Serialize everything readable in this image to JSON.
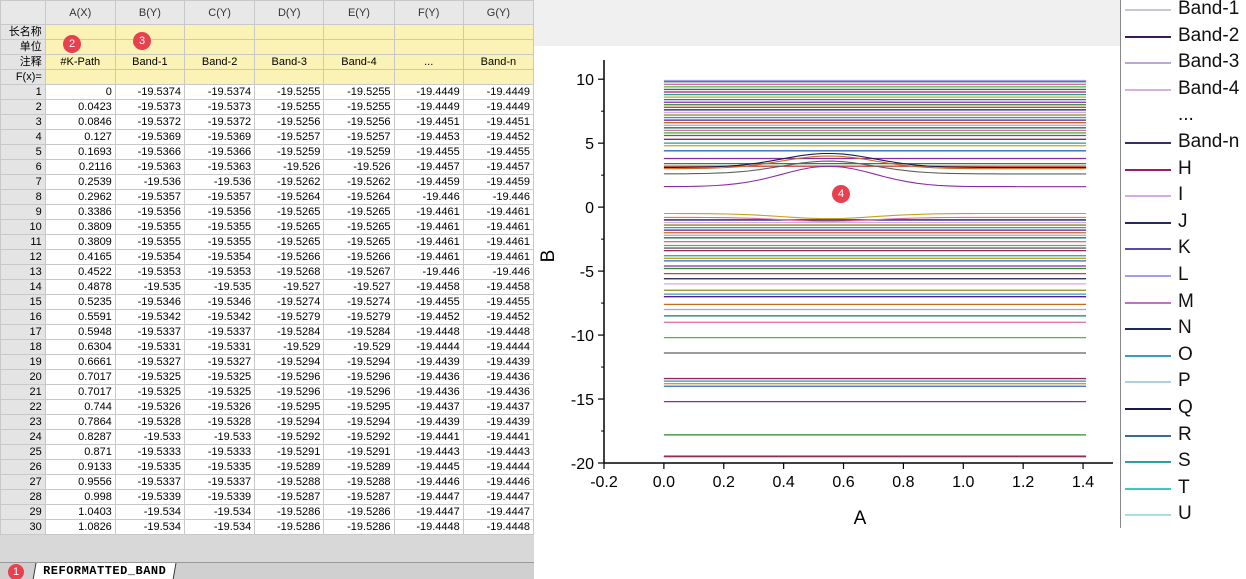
{
  "worksheet": {
    "corner": "",
    "columns": [
      "A(X)",
      "B(Y)",
      "C(Y)",
      "D(Y)",
      "E(Y)",
      "F(Y)",
      "G(Y)"
    ],
    "meta_rows": [
      {
        "label": "长名称",
        "cells": [
          "",
          "",
          "",
          "",
          "",
          "",
          ""
        ]
      },
      {
        "label": "单位",
        "cells": [
          "",
          "",
          "",
          "",
          "",
          "",
          ""
        ]
      },
      {
        "label": "注释",
        "cells": [
          "#K-Path",
          "Band-1",
          "Band-2",
          "Band-3",
          "Band-4",
          "...",
          "Band-n"
        ]
      },
      {
        "label": "F(x)=",
        "cells": [
          "",
          "",
          "",
          "",
          "",
          "",
          ""
        ]
      }
    ],
    "rows": [
      [
        "1",
        "0",
        "-19.5374",
        "-19.5374",
        "-19.5255",
        "-19.5255",
        "-19.4449",
        "-19.4449"
      ],
      [
        "2",
        "0.0423",
        "-19.5373",
        "-19.5373",
        "-19.5255",
        "-19.5255",
        "-19.4449",
        "-19.4449"
      ],
      [
        "3",
        "0.0846",
        "-19.5372",
        "-19.5372",
        "-19.5256",
        "-19.5256",
        "-19.4451",
        "-19.4451"
      ],
      [
        "4",
        "0.127",
        "-19.5369",
        "-19.5369",
        "-19.5257",
        "-19.5257",
        "-19.4453",
        "-19.4452"
      ],
      [
        "5",
        "0.1693",
        "-19.5366",
        "-19.5366",
        "-19.5259",
        "-19.5259",
        "-19.4455",
        "-19.4455"
      ],
      [
        "6",
        "0.2116",
        "-19.5363",
        "-19.5363",
        "-19.526",
        "-19.526",
        "-19.4457",
        "-19.4457"
      ],
      [
        "7",
        "0.2539",
        "-19.536",
        "-19.536",
        "-19.5262",
        "-19.5262",
        "-19.4459",
        "-19.4459"
      ],
      [
        "8",
        "0.2962",
        "-19.5357",
        "-19.5357",
        "-19.5264",
        "-19.5264",
        "-19.446",
        "-19.446"
      ],
      [
        "9",
        "0.3386",
        "-19.5356",
        "-19.5356",
        "-19.5265",
        "-19.5265",
        "-19.4461",
        "-19.4461"
      ],
      [
        "10",
        "0.3809",
        "-19.5355",
        "-19.5355",
        "-19.5265",
        "-19.5265",
        "-19.4461",
        "-19.4461"
      ],
      [
        "11",
        "0.3809",
        "-19.5355",
        "-19.5355",
        "-19.5265",
        "-19.5265",
        "-19.4461",
        "-19.4461"
      ],
      [
        "12",
        "0.4165",
        "-19.5354",
        "-19.5354",
        "-19.5266",
        "-19.5266",
        "-19.4461",
        "-19.4461"
      ],
      [
        "13",
        "0.4522",
        "-19.5353",
        "-19.5353",
        "-19.5268",
        "-19.5267",
        "-19.446",
        "-19.446"
      ],
      [
        "14",
        "0.4878",
        "-19.535",
        "-19.535",
        "-19.527",
        "-19.527",
        "-19.4458",
        "-19.4458"
      ],
      [
        "15",
        "0.5235",
        "-19.5346",
        "-19.5346",
        "-19.5274",
        "-19.5274",
        "-19.4455",
        "-19.4455"
      ],
      [
        "16",
        "0.5591",
        "-19.5342",
        "-19.5342",
        "-19.5279",
        "-19.5279",
        "-19.4452",
        "-19.4452"
      ],
      [
        "17",
        "0.5948",
        "-19.5337",
        "-19.5337",
        "-19.5284",
        "-19.5284",
        "-19.4448",
        "-19.4448"
      ],
      [
        "18",
        "0.6304",
        "-19.5331",
        "-19.5331",
        "-19.529",
        "-19.529",
        "-19.4444",
        "-19.4444"
      ],
      [
        "19",
        "0.6661",
        "-19.5327",
        "-19.5327",
        "-19.5294",
        "-19.5294",
        "-19.4439",
        "-19.4439"
      ],
      [
        "20",
        "0.7017",
        "-19.5325",
        "-19.5325",
        "-19.5296",
        "-19.5296",
        "-19.4436",
        "-19.4436"
      ],
      [
        "21",
        "0.7017",
        "-19.5325",
        "-19.5325",
        "-19.5296",
        "-19.5296",
        "-19.4436",
        "-19.4436"
      ],
      [
        "22",
        "0.744",
        "-19.5326",
        "-19.5326",
        "-19.5295",
        "-19.5295",
        "-19.4437",
        "-19.4437"
      ],
      [
        "23",
        "0.7864",
        "-19.5328",
        "-19.5328",
        "-19.5294",
        "-19.5294",
        "-19.4439",
        "-19.4439"
      ],
      [
        "24",
        "0.8287",
        "-19.533",
        "-19.533",
        "-19.5292",
        "-19.5292",
        "-19.4441",
        "-19.4441"
      ],
      [
        "25",
        "0.871",
        "-19.5333",
        "-19.5333",
        "-19.5291",
        "-19.5291",
        "-19.4443",
        "-19.4443"
      ],
      [
        "26",
        "0.9133",
        "-19.5335",
        "-19.5335",
        "-19.5289",
        "-19.5289",
        "-19.4445",
        "-19.4444"
      ],
      [
        "27",
        "0.9556",
        "-19.5337",
        "-19.5337",
        "-19.5288",
        "-19.5288",
        "-19.4446",
        "-19.4446"
      ],
      [
        "28",
        "0.998",
        "-19.5339",
        "-19.5339",
        "-19.5287",
        "-19.5287",
        "-19.4447",
        "-19.4447"
      ],
      [
        "29",
        "1.0403",
        "-19.534",
        "-19.534",
        "-19.5286",
        "-19.5286",
        "-19.4447",
        "-19.4447"
      ],
      [
        "30",
        "1.0826",
        "-19.534",
        "-19.534",
        "-19.5286",
        "-19.5286",
        "-19.4448",
        "-19.4448"
      ]
    ],
    "sheet_tab": "REFORMATTED_BAND"
  },
  "badges": [
    "1",
    "2",
    "3",
    "4"
  ],
  "chart_data": {
    "type": "line",
    "title": "",
    "xlabel": "A",
    "ylabel": "B",
    "xlim": [
      -0.2,
      1.5
    ],
    "ylim": [
      -20,
      11.5
    ],
    "x_ticks": [
      "-0.2",
      "0.0",
      "0.2",
      "0.4",
      "0.6",
      "0.8",
      "1.0",
      "1.2",
      "1.4",
      "1."
    ],
    "y_ticks": [
      "10",
      "5",
      "0",
      "-5",
      "-10",
      "-15",
      "-20"
    ],
    "x_range": [
      0,
      1.41
    ],
    "flat_bands": [
      -19.5,
      -19.45,
      -17.8,
      -15.2,
      -14.0,
      -13.8,
      -13.6,
      -13.4,
      -11.4,
      -10.2,
      -9.0,
      -8.5,
      -8.0,
      -7.6,
      -7.0,
      -6.8,
      -6.5,
      -6.0,
      -5.6,
      -5.2,
      -4.8,
      -4.6,
      -4.2,
      -4.0,
      -3.8,
      -3.4,
      -3.2,
      -3.0,
      -2.7,
      -2.4,
      -2.2,
      -2.0,
      -1.8,
      -1.6,
      -1.4,
      -1.2,
      -1.0,
      3.2,
      3.4,
      3.8,
      4.4,
      4.8,
      5.0,
      5.3,
      5.6,
      5.8,
      6.0,
      6.2,
      6.4,
      6.6,
      6.8,
      7.0,
      7.2,
      7.4,
      7.6,
      7.8,
      8.0,
      8.2,
      8.4,
      8.6,
      8.8,
      9.0,
      9.2,
      9.4,
      9.6,
      9.8,
      9.9
    ],
    "dispersive_bands": [
      {
        "ends": 1.6,
        "mid": 3.2
      },
      {
        "ends": 2.6,
        "mid": 3.6
      },
      {
        "ends": 3.0,
        "mid": 4.0
      },
      {
        "ends": 3.1,
        "mid": 4.2
      },
      {
        "ends": -0.5,
        "mid": -0.9
      },
      {
        "ends": -0.8,
        "mid": -1.1
      }
    ],
    "legend": [
      {
        "name": "Band-1",
        "color": "#c8c8d4"
      },
      {
        "name": "Band-2",
        "color": "#3a1a5a"
      },
      {
        "name": "Band-3",
        "color": "#b8a8d8"
      },
      {
        "name": "Band-4",
        "color": "#d8b0e0"
      },
      {
        "name": "...",
        "color": "#ffffff"
      },
      {
        "name": "Band-n",
        "color": "#3a2a6a"
      },
      {
        "name": "H",
        "color": "#9a1a6a"
      },
      {
        "name": "I",
        "color": "#d8a8e8"
      },
      {
        "name": "J",
        "color": "#282868"
      },
      {
        "name": "K",
        "color": "#5a4aa8"
      },
      {
        "name": "L",
        "color": "#a0a0e8"
      },
      {
        "name": "M",
        "color": "#c070c8"
      },
      {
        "name": "N",
        "color": "#1a2a5a"
      },
      {
        "name": "O",
        "color": "#3a9ac8"
      },
      {
        "name": "P",
        "color": "#a8d0e8"
      },
      {
        "name": "Q",
        "color": "#1a1a4a"
      },
      {
        "name": "R",
        "color": "#3a6a9a"
      },
      {
        "name": "S",
        "color": "#2aa0a8"
      },
      {
        "name": "T",
        "color": "#40c8c0"
      },
      {
        "name": "U",
        "color": "#a8e0e0"
      }
    ],
    "palette": [
      "#1a1a5a",
      "#d04040",
      "#2a8a2a",
      "#8a2aaa",
      "#2a6ac8",
      "#c8a020",
      "#20a0a0",
      "#a02060",
      "#606060",
      "#40c040",
      "#e06aa0",
      "#1a7a5a",
      "#a0a0e8",
      "#c86a20",
      "#5a1a8a",
      "#3a9ac8",
      "#8a8a20",
      "#d8a8e8"
    ]
  }
}
